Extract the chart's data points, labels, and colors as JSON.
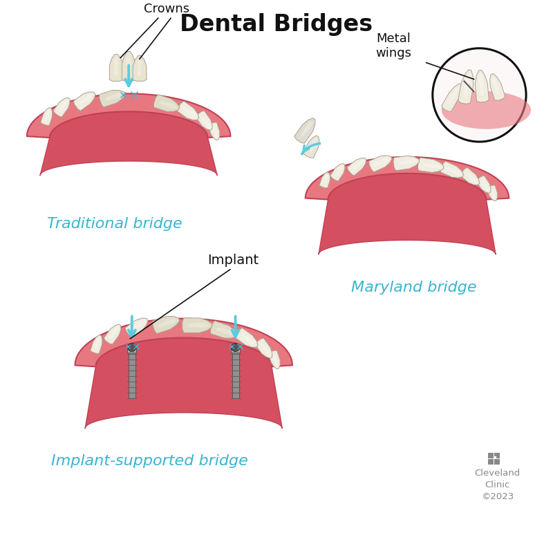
{
  "title": "Dental Bridges",
  "title_fontsize": 24,
  "title_fontweight": "bold",
  "title_color": "#111111",
  "background_color": "#ffffff",
  "label_traditional": "Traditional bridge",
  "label_maryland": "Maryland bridge",
  "label_implant": "Implant-supported bridge",
  "label_color": "#3ab5d0",
  "label_fontsize": 16,
  "annotation_crowns": "Crowns",
  "annotation_metal_wings": "Metal\nwings",
  "annotation_implant": "Implant",
  "annotation_color": "#111111",
  "annotation_fontsize": 12,
  "gum_color_light": "#e87880",
  "gum_color_mid": "#d45060",
  "gum_color_dark": "#c04055",
  "tooth_color": "#f0ede0",
  "tooth_shadow": "#c8c0a8",
  "tooth_highlight": "#ffffff",
  "arrow_color": "#5bcce0",
  "implant_color": "#888888",
  "cc_color": "#888888"
}
